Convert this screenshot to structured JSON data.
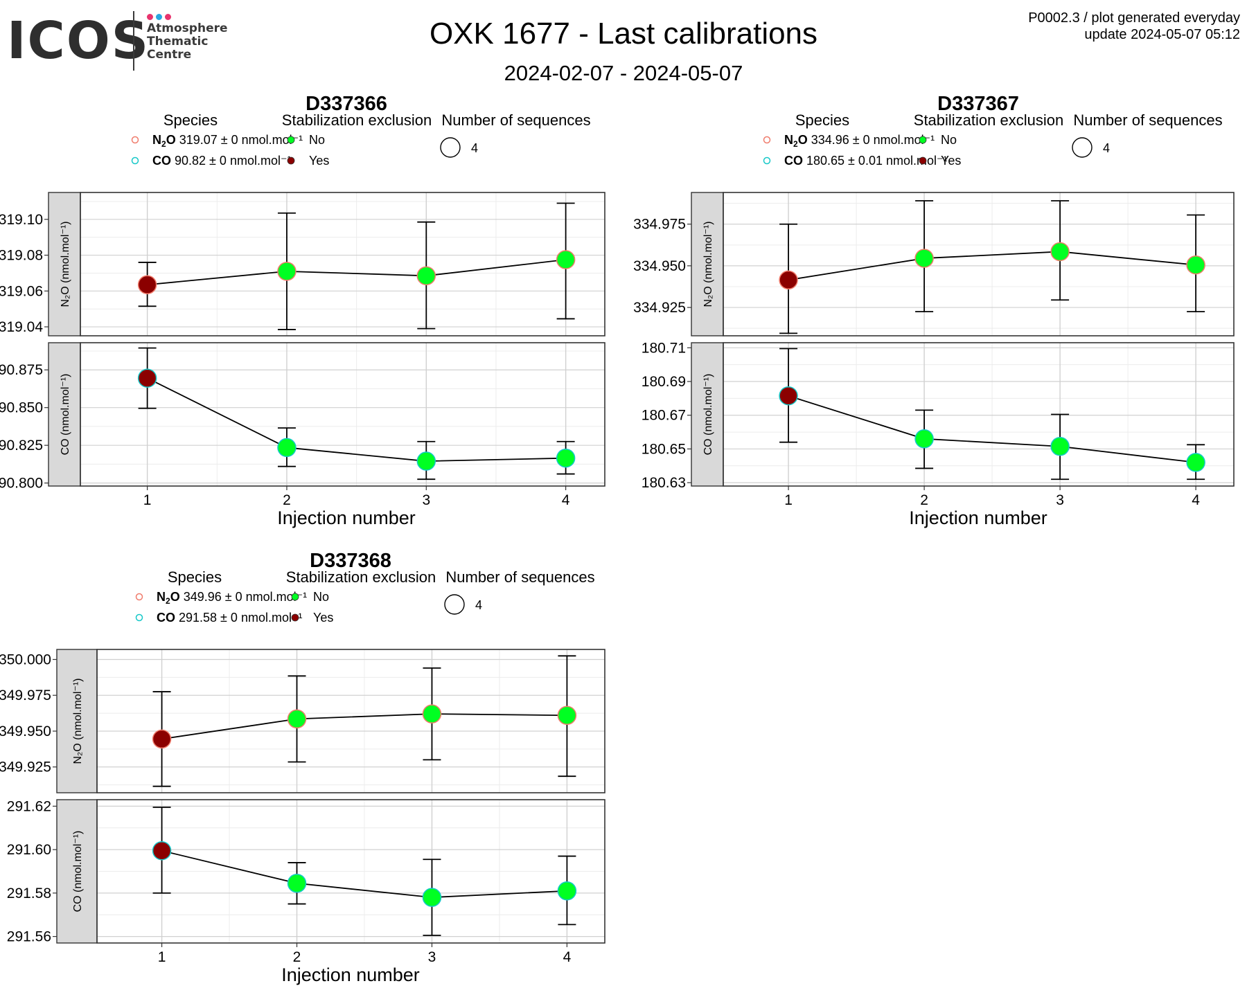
{
  "logo": {
    "name": "ICOS",
    "line1": "Atmosphere",
    "line2": "Thematic",
    "line3": "Centre",
    "dot_colors": [
      "#e8336d",
      "#2aa7e0",
      "#e8336d"
    ]
  },
  "header": {
    "title": "OXK 1677 - Last calibrations",
    "subtitle": "2024-02-07 - 2024-05-07",
    "top_right_line1": "P0002.3 / plot generated everyday",
    "top_right_line2": "update  2024-05-07 05:12"
  },
  "legend_titles": {
    "species": "Species",
    "stabilization": "Stabilization exclusion",
    "sequences": "Number of sequences"
  },
  "legend_items": {
    "no": "No",
    "yes": "Yes",
    "sequences_value": "4"
  },
  "colors": {
    "no": "#00ff22",
    "yes": "#8b0000",
    "n2o_outline": "#f07c6c",
    "co_outline": "#16c8c8",
    "strip_bg": "#d9d9d9",
    "grid_major": "#d0d0d0",
    "grid_minor": "#ececec"
  },
  "chart_data": [
    {
      "type": "scatter",
      "title": "D337366",
      "xlabel": "Injection number",
      "x": [
        1,
        2,
        3,
        4
      ],
      "legend_species": [
        {
          "name": "N2O",
          "text": "319.07 ± 0 nmol.mol⁻¹"
        },
        {
          "name": "CO",
          "text": "90.82 ± 0 nmol.mol⁻¹"
        }
      ],
      "facets": [
        {
          "strip": "N₂O (nmol.mol⁻¹)",
          "ylim": [
            319.035,
            319.115
          ],
          "yticks": [
            319.04,
            319.06,
            319.08,
            319.1
          ],
          "tick_labels": [
            "319.04",
            "319.06",
            "319.08",
            "319.10"
          ],
          "y": [
            319.0635,
            319.071,
            319.0685,
            319.0775
          ],
          "err_low": [
            319.0515,
            319.0385,
            319.039,
            319.0445
          ],
          "err_high": [
            319.076,
            319.1035,
            319.0985,
            319.109
          ],
          "excluded": [
            true,
            false,
            false,
            false
          ]
        },
        {
          "strip": "CO (nmol.mol⁻¹)",
          "ylim": [
            90.798,
            90.893
          ],
          "yticks": [
            90.8,
            90.825,
            90.85,
            90.875
          ],
          "tick_labels": [
            "90.800",
            "90.825",
            "90.850",
            "90.875"
          ],
          "y": [
            90.8695,
            90.8235,
            90.8145,
            90.8165
          ],
          "err_low": [
            90.8495,
            90.811,
            90.8025,
            90.806
          ],
          "err_high": [
            90.8895,
            90.8365,
            90.8275,
            90.8275
          ],
          "excluded": [
            true,
            false,
            false,
            false
          ]
        }
      ]
    },
    {
      "type": "scatter",
      "title": "D337367",
      "xlabel": "Injection number",
      "x": [
        1,
        2,
        3,
        4
      ],
      "legend_species": [
        {
          "name": "N2O",
          "text": "334.96 ± 0 nmol.mol⁻¹"
        },
        {
          "name": "CO",
          "text": "180.65 ± 0.01 nmol.mol⁻¹"
        }
      ],
      "facets": [
        {
          "strip": "N₂O (nmol.mol⁻¹)",
          "ylim": [
            334.908,
            334.994
          ],
          "yticks": [
            334.925,
            334.95,
            334.975
          ],
          "tick_labels": [
            "334.925",
            "334.950",
            "334.975"
          ],
          "y": [
            334.9415,
            334.9545,
            334.9585,
            334.9505
          ],
          "err_low": [
            334.9095,
            334.9225,
            334.9295,
            334.9225
          ],
          "err_high": [
            334.975,
            334.989,
            334.989,
            334.9805
          ],
          "excluded": [
            true,
            false,
            false,
            false
          ]
        },
        {
          "strip": "CO (nmol.mol⁻¹)",
          "ylim": [
            180.628,
            180.713
          ],
          "yticks": [
            180.63,
            180.65,
            180.67,
            180.69,
            180.71
          ],
          "tick_labels": [
            "180.63",
            "180.65",
            "180.67",
            "180.69",
            "180.71"
          ],
          "y": [
            180.6815,
            180.656,
            180.6515,
            180.642
          ],
          "err_low": [
            180.654,
            180.6385,
            180.632,
            180.632
          ],
          "err_high": [
            180.7095,
            180.673,
            180.6705,
            180.6525
          ],
          "excluded": [
            true,
            false,
            false,
            false
          ]
        }
      ]
    },
    {
      "type": "scatter",
      "title": "D337368",
      "xlabel": "Injection number",
      "x": [
        1,
        2,
        3,
        4
      ],
      "legend_species": [
        {
          "name": "N2O",
          "text": "349.96 ± 0 nmol.mol⁻¹"
        },
        {
          "name": "CO",
          "text": "291.58 ± 0 nmol.mol⁻¹"
        }
      ],
      "facets": [
        {
          "strip": "N₂O (nmol.mol⁻¹)",
          "ylim": [
            349.907,
            350.007
          ],
          "yticks": [
            349.925,
            349.95,
            349.975,
            350.0
          ],
          "tick_labels": [
            "349.925",
            "349.950",
            "349.975",
            "350.000"
          ],
          "y": [
            349.9445,
            349.9585,
            349.962,
            349.961
          ],
          "err_low": [
            349.9115,
            349.9285,
            349.93,
            349.9185
          ],
          "err_high": [
            349.9775,
            349.9885,
            349.994,
            350.0025
          ],
          "excluded": [
            true,
            false,
            false,
            false
          ]
        },
        {
          "strip": "CO (nmol.mol⁻¹)",
          "ylim": [
            291.557,
            291.623
          ],
          "yticks": [
            291.56,
            291.58,
            291.6,
            291.62
          ],
          "tick_labels": [
            "291.56",
            "291.58",
            "291.60",
            "291.62"
          ],
          "y": [
            291.5995,
            291.5845,
            291.578,
            291.581
          ],
          "err_low": [
            291.58,
            291.575,
            291.5605,
            291.5655
          ],
          "err_high": [
            291.6195,
            291.594,
            291.5955,
            291.597
          ],
          "excluded": [
            true,
            false,
            false,
            false
          ]
        }
      ]
    }
  ]
}
